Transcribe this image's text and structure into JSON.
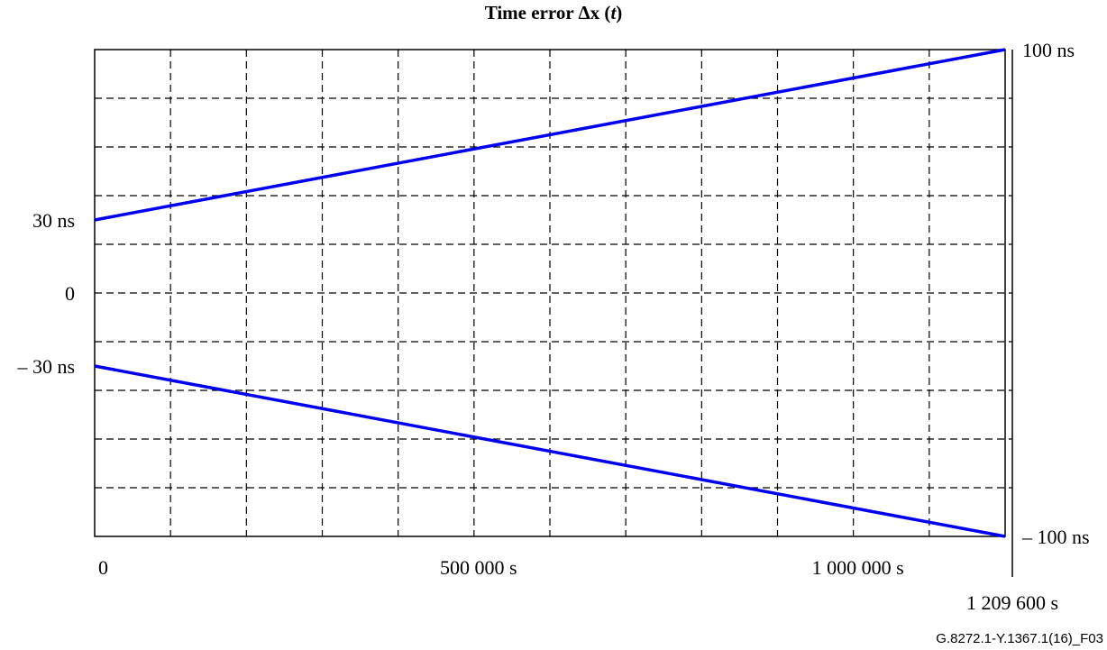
{
  "chart_data": {
    "type": "line",
    "title_main": "Time error Δx (",
    "title_var": "t",
    "title_end": ")",
    "x": [
      0,
      1209600
    ],
    "xlim": [
      0,
      1209600
    ],
    "ylim": [
      -100,
      100
    ],
    "series": [
      {
        "values": [
          30,
          100
        ]
      },
      {
        "values": [
          -30,
          -100
        ]
      }
    ],
    "series_color": "#0000ee",
    "grid": true,
    "x_grid_values": [
      100800,
      201600,
      302400,
      403200,
      504000,
      604800,
      705600,
      806400,
      907200,
      1008000,
      1108800
    ],
    "y_grid_values": [
      80,
      60,
      40,
      20,
      0,
      -20,
      -40,
      -60,
      -80
    ],
    "x_tick_labels": [
      {
        "value": 0,
        "label": "0"
      },
      {
        "value": 504000,
        "label": "500 000 s"
      },
      {
        "value": 1008000,
        "label": "1 000 000 s"
      }
    ],
    "x_end_label": "1 209 600 s",
    "y_left_labels": [
      {
        "value": 30,
        "label": "30 ns"
      },
      {
        "value": 0,
        "label": "0"
      },
      {
        "value": -30,
        "label": "– 30 ns"
      }
    ],
    "y_right_labels": [
      {
        "value": 100,
        "label": "100 ns"
      },
      {
        "value": -100,
        "label": "– 100 ns"
      }
    ],
    "figure_id": "G.8272.1-Y.1367.1(16)_F03"
  }
}
